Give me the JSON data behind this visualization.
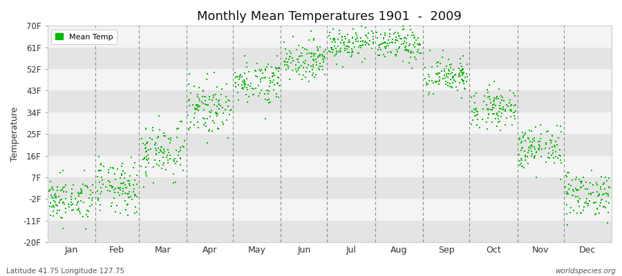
{
  "title": "Monthly Mean Temperatures 1901  -  2009",
  "ylabel": "Temperature",
  "subtitle_left": "Latitude 41.75 Longitude 127.75",
  "subtitle_right": "worldspecies.org",
  "legend_label": "Mean Temp",
  "background_color": "#ffffff",
  "plot_bg_color": "#efefef",
  "band_color_light": "#f4f4f4",
  "band_color_dark": "#e4e4e4",
  "dot_color": "#00bb00",
  "dot_size": 3,
  "ytick_labels": [
    "-20F",
    "-11F",
    "-2F",
    "7F",
    "16F",
    "25F",
    "34F",
    "43F",
    "52F",
    "61F",
    "70F"
  ],
  "ytick_values": [
    -20,
    -11,
    -2,
    7,
    16,
    25,
    34,
    43,
    52,
    61,
    70
  ],
  "months": [
    "Jan",
    "Feb",
    "Mar",
    "Apr",
    "May",
    "Jun",
    "Jul",
    "Aug",
    "Sep",
    "Oct",
    "Nov",
    "Dec"
  ],
  "month_mean_temps_F": [
    -2.5,
    2.5,
    18,
    36,
    47,
    56,
    63,
    62,
    49,
    36,
    19,
    0
  ],
  "month_std_F": [
    4.5,
    5.5,
    6.0,
    5.5,
    4.5,
    4.0,
    3.5,
    3.5,
    4.0,
    4.0,
    4.5,
    5.0
  ],
  "n_years": 109,
  "dashed_line_color": "#888888",
  "spine_color": "#cccccc"
}
